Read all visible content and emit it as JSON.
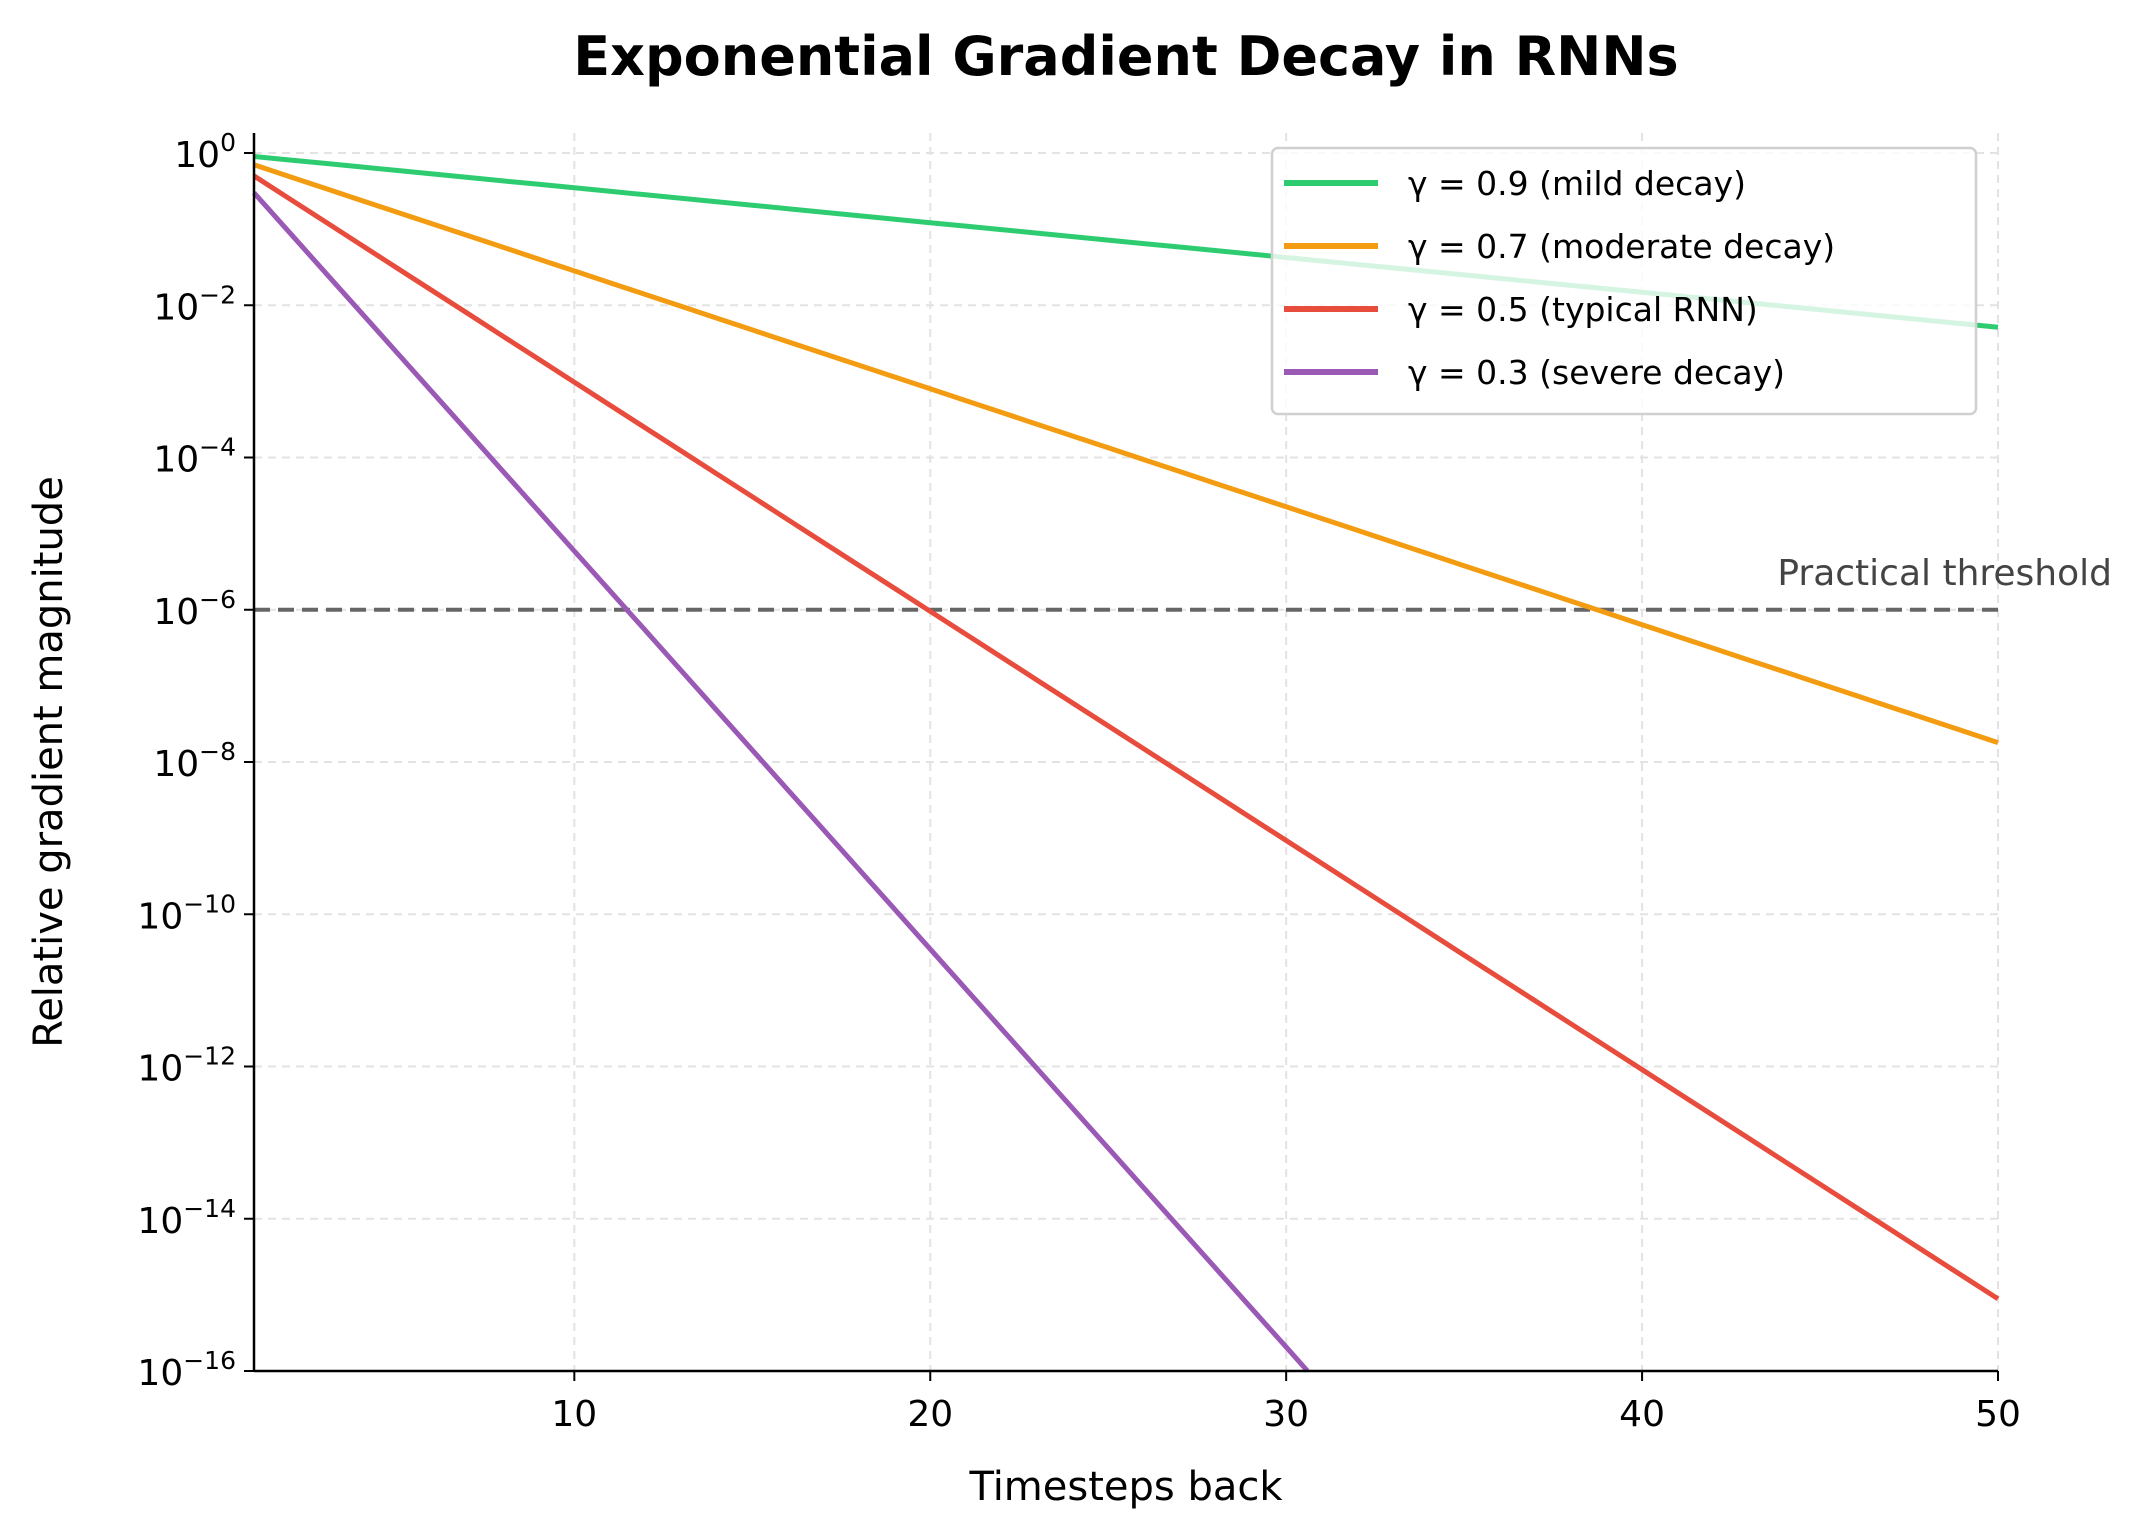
{
  "chart_data": {
    "type": "line",
    "title": "Exponential Gradient Decay in RNNs",
    "xlabel": "Timesteps back",
    "ylabel": "Relative gradient magnitude",
    "xlim": [
      1,
      50
    ],
    "ylim": [
      1e-16,
      1
    ],
    "yscale": "log",
    "grid": true,
    "legend_placement": "top-right",
    "xticks": [
      10,
      20,
      30,
      40,
      50
    ],
    "yticks": [
      0,
      -2,
      -4,
      -6,
      -8,
      -10,
      -12,
      -14,
      -16
    ],
    "x_start": 1,
    "x_end": 50,
    "formula": "gamma^t",
    "series": [
      {
        "name": "γ = 0.9 (mild decay)",
        "gamma": 0.9,
        "color": "#2ecc71"
      },
      {
        "name": "γ = 0.7 (moderate decay)",
        "gamma": 0.7,
        "color": "#f39c12"
      },
      {
        "name": "γ = 0.5 (typical RNN)",
        "gamma": 0.5,
        "color": "#e74c3c"
      },
      {
        "name": "γ = 0.3 (severe decay)",
        "gamma": 0.3,
        "color": "#9b59b6"
      }
    ],
    "threshold": {
      "value": 1e-06,
      "label": "Practical threshold",
      "color": "#666666"
    }
  }
}
